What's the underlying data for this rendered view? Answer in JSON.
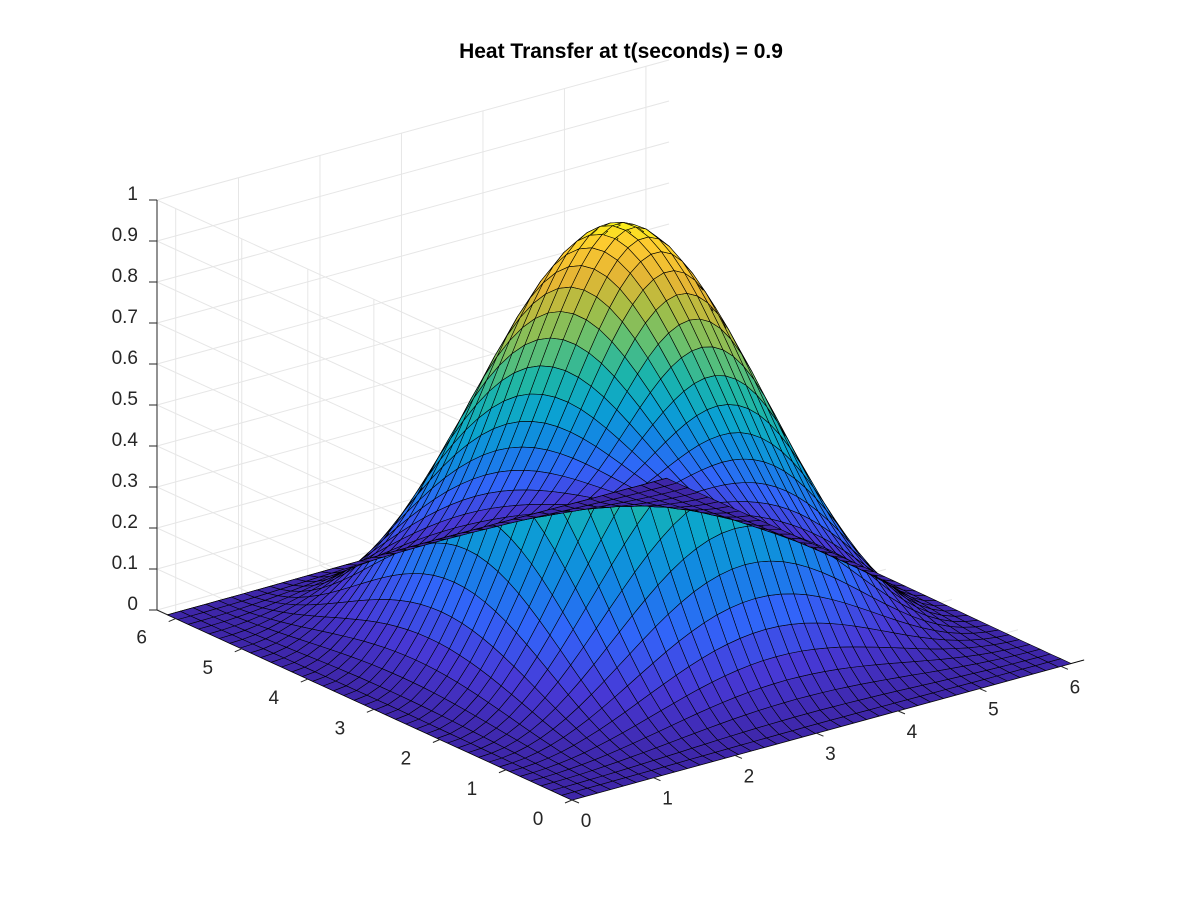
{
  "chart_data": {
    "type": "surface",
    "title": "Heat Transfer at t(seconds) = 0.9",
    "xlabel": "",
    "ylabel": "",
    "zlabel": "",
    "xlim": [
      0,
      6.2832
    ],
    "ylim": [
      0,
      6.2832
    ],
    "zlim": [
      0,
      1
    ],
    "x_ticks": [
      "0",
      "1",
      "2",
      "3",
      "4",
      "5",
      "6"
    ],
    "y_ticks": [
      "0",
      "1",
      "2",
      "3",
      "4",
      "5",
      "6"
    ],
    "z_ticks": [
      "0",
      "0.1",
      "0.2",
      "0.3",
      "0.4",
      "0.5",
      "0.6",
      "0.7",
      "0.8",
      "0.9",
      "1"
    ],
    "grid": true,
    "box": false,
    "colormap": "parula",
    "surface_function": "z = (sin(x/2) * sin(y/2))^2.2",
    "grid_size": [
      41,
      41
    ],
    "peak": {
      "x": 3.1416,
      "y": 3.1416,
      "z": 1.0
    },
    "edge_color": "#000000"
  }
}
